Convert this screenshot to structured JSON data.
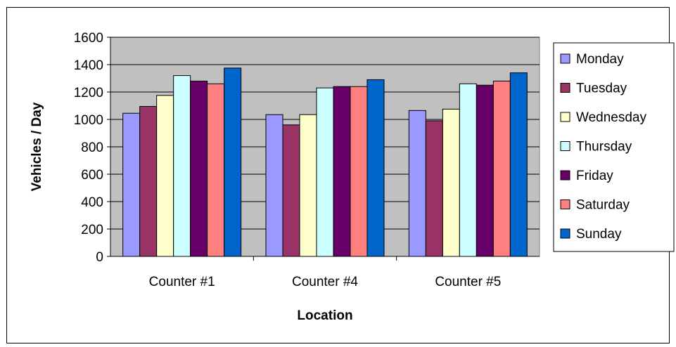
{
  "chart_data": {
    "type": "bar",
    "title": "",
    "xlabel": "Location",
    "ylabel": "Vehicles / Day",
    "categories": [
      "Counter #1",
      "Counter #4",
      "Counter #5"
    ],
    "ylim": [
      0,
      1600
    ],
    "yticks": [
      "0",
      "200",
      "400",
      "600",
      "800",
      "1000",
      "1200",
      "1400",
      "1600"
    ],
    "grid": true,
    "legend_position": "right",
    "plot_background": "#c0c0c0",
    "series": [
      {
        "name": "Monday",
        "color": "#9999ff",
        "values": [
          1045,
          1035,
          1065
        ]
      },
      {
        "name": "Tuesday",
        "color": "#993366",
        "values": [
          1095,
          960,
          990
        ]
      },
      {
        "name": "Wednesday",
        "color": "#ffffcc",
        "values": [
          1175,
          1035,
          1075
        ]
      },
      {
        "name": "Thursday",
        "color": "#ccffff",
        "values": [
          1320,
          1230,
          1260
        ]
      },
      {
        "name": "Friday",
        "color": "#660066",
        "values": [
          1280,
          1240,
          1250
        ]
      },
      {
        "name": "Saturday",
        "color": "#ff8080",
        "values": [
          1260,
          1240,
          1280
        ]
      },
      {
        "name": "Sunday",
        "color": "#0066cc",
        "values": [
          1375,
          1290,
          1340
        ]
      }
    ]
  }
}
